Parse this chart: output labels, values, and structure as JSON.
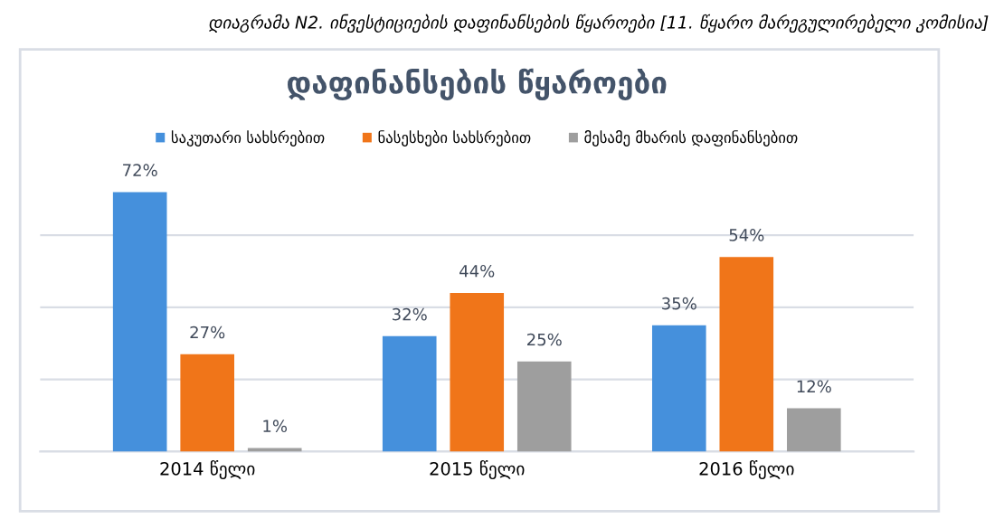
{
  "chart_data": {
    "type": "bar",
    "title": "დაფინანსების წყაროები",
    "annotations": [
      "დიაგრამა N2. ინვესტიციების დაფინანსების წყაროები [11. წყარო მარეგულირებელი კომისია]"
    ],
    "categories": [
      "2014 წელი",
      "2015 წელი",
      "2016 წელი"
    ],
    "series": [
      {
        "name": "საკუთარი სახსრებით",
        "color": "#4590dc",
        "values": [
          72,
          32,
          35
        ],
        "value_labels": [
          "72%",
          "32%",
          "35%"
        ]
      },
      {
        "name": "ნასესხები სახსრებით",
        "color": "#f07519",
        "values": [
          27,
          44,
          54
        ],
        "value_labels": [
          "27%",
          "44%",
          "54%"
        ]
      },
      {
        "name": "მესამე მხარის დაფინანსებით",
        "color": "#9e9e9e",
        "values": [
          1,
          25,
          12
        ],
        "value_labels": [
          "1%",
          "25%",
          "12%"
        ]
      }
    ],
    "grid": "y",
    "legend": "top",
    "tick_labels": "x"
  }
}
